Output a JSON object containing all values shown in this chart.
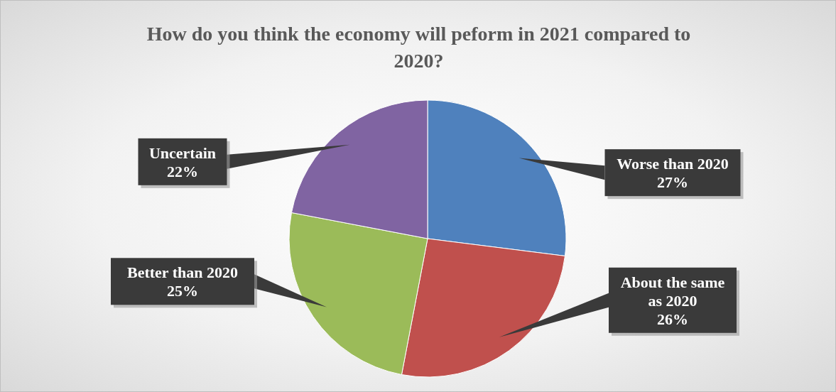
{
  "chart_data": {
    "type": "pie",
    "title": "How do you think the economy will peform in 2021 compared to 2020?",
    "categories": [
      "Worse than 2020",
      "About the same as 2020",
      "Better than 2020",
      "Uncertain"
    ],
    "values": [
      27,
      26,
      25,
      22
    ],
    "value_labels": [
      "27%",
      "26%",
      "25%",
      "22%"
    ],
    "colors": [
      "#4f81bd",
      "#c0504d",
      "#9bbb59",
      "#8064a2"
    ],
    "legend": false
  }
}
